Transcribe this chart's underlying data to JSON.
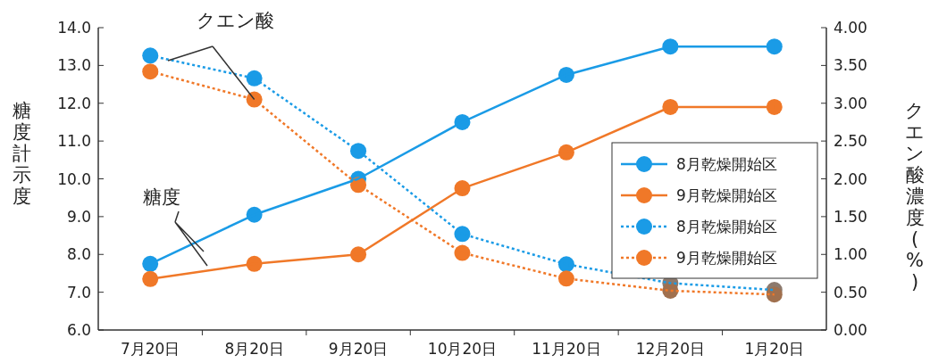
{
  "chart_data": {
    "type": "line",
    "categories": [
      "7月20日",
      "8月20日",
      "9月20日",
      "10月20日",
      "11月20日",
      "12月20日",
      "1月20日"
    ],
    "ylabel": "糖度計示度",
    "y2label": "クエン酸濃度(%)",
    "ylim": [
      6.0,
      14.0
    ],
    "yticks": [
      {
        "value": 6,
        "label": "6.0"
      },
      {
        "value": 7,
        "label": "7.0"
      },
      {
        "value": 8,
        "label": "8.0"
      },
      {
        "value": 9,
        "label": "9.0"
      },
      {
        "value": 10,
        "label": "10.0"
      },
      {
        "value": 11,
        "label": "11.0"
      },
      {
        "value": 12,
        "label": "12.0"
      },
      {
        "value": 13,
        "label": "13.0"
      },
      {
        "value": 14,
        "label": "14.0"
      }
    ],
    "y2lim": [
      0,
      4
    ],
    "y2ticks": [
      {
        "value": 0,
        "label": "0.00"
      },
      {
        "value": 0.5,
        "label": "0.50"
      },
      {
        "value": 1,
        "label": "1.00"
      },
      {
        "value": 1.5,
        "label": "1.50"
      },
      {
        "value": 2,
        "label": "2.00"
      },
      {
        "value": 2.5,
        "label": "2.50"
      },
      {
        "value": 3,
        "label": "3.00"
      },
      {
        "value": 3.5,
        "label": "3.50"
      },
      {
        "value": 4,
        "label": "4.00"
      }
    ],
    "marker": "circle",
    "legend": "right",
    "grid": false,
    "annotations": [
      {
        "text": "クエン酸",
        "x": "8月20日",
        "y": 12.1
      },
      "糖度"
    ],
    "series": [
      {
        "name": "8月乾燥開始区",
        "color": "#1a9be6",
        "line_style": "solid",
        "values": [
          7.75,
          9.05,
          10.0,
          11.5,
          12.75,
          13.5,
          13.5
        ]
      },
      {
        "name": "9月乾燥開始区",
        "color": "#f07828",
        "line_style": "solid",
        "values": [
          7.35,
          7.75,
          8.0,
          9.75,
          10.7,
          11.9,
          11.9
        ]
      },
      {
        "name": "8月乾燥開始区",
        "color": "#1a9be6",
        "line_style": "dotted",
        "axis": "y2",
        "colors": [
          "#1a9be6",
          "#1a9be6",
          "#1a9be6",
          "#1a9be6",
          "#1a9be6",
          "#8c7a6e",
          "#8c7a6e"
        ],
        "values": [
          3.63,
          3.33,
          2.37,
          1.27,
          0.87,
          0.62,
          0.53
        ]
      },
      {
        "name": "9月乾燥開始区",
        "color": "#f07828",
        "line_style": "dotted",
        "axis": "y2",
        "colors": [
          "#f07828",
          "#f07828",
          "#f07828",
          "#f07828",
          "#f07828",
          "#a0704e",
          "#a0704e"
        ],
        "values": [
          3.42,
          3.05,
          1.92,
          1.02,
          0.68,
          0.52,
          0.47
        ]
      }
    ]
  }
}
